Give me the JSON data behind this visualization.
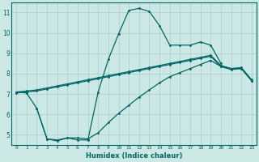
{
  "xlabel": "Humidex (Indice chaleur)",
  "bg_color": "#cce8e4",
  "grid_color": "#aacccc",
  "line_color": "#006666",
  "xlim": [
    -0.5,
    23.5
  ],
  "ylim": [
    4.5,
    11.5
  ],
  "xticks": [
    0,
    1,
    2,
    3,
    4,
    5,
    6,
    7,
    8,
    9,
    10,
    11,
    12,
    13,
    14,
    15,
    16,
    17,
    18,
    19,
    20,
    21,
    22,
    23
  ],
  "yticks": [
    5,
    6,
    7,
    8,
    9,
    10,
    11
  ],
  "curve1_x": [
    0,
    1,
    2,
    3,
    4,
    5,
    6,
    7,
    8,
    9,
    10,
    11,
    12,
    13,
    14,
    15,
    16,
    17,
    18,
    19,
    20
  ],
  "curve1_y": [
    7.1,
    7.05,
    6.3,
    4.8,
    4.75,
    4.85,
    4.75,
    4.75,
    7.1,
    8.7,
    9.95,
    11.1,
    11.2,
    11.05,
    10.35,
    9.4,
    9.4,
    9.4,
    9.55,
    9.4,
    8.5
  ],
  "curve2_x": [
    0,
    1,
    2,
    3,
    4,
    5,
    6,
    7,
    8,
    9,
    10,
    11,
    12,
    13,
    14,
    15,
    16,
    17,
    18,
    19,
    20,
    21,
    22,
    23
  ],
  "curve2_y": [
    7.1,
    7.15,
    7.2,
    7.3,
    7.4,
    7.5,
    7.6,
    7.7,
    7.8,
    7.9,
    8.0,
    8.1,
    8.2,
    8.3,
    8.4,
    8.5,
    8.6,
    8.7,
    8.8,
    8.9,
    8.4,
    8.25,
    8.3,
    7.7
  ],
  "curve3_x": [
    0,
    1,
    2,
    3,
    4,
    5,
    6,
    7,
    8,
    9,
    10,
    11,
    12,
    13,
    14,
    15,
    16,
    17,
    18,
    19,
    20,
    21,
    22,
    23
  ],
  "curve3_y": [
    7.05,
    7.1,
    7.15,
    7.25,
    7.35,
    7.45,
    7.55,
    7.65,
    7.75,
    7.85,
    7.95,
    8.05,
    8.15,
    8.25,
    8.35,
    8.45,
    8.55,
    8.65,
    8.75,
    8.85,
    8.35,
    8.2,
    8.25,
    7.65
  ],
  "curve4_x": [
    2,
    3,
    4,
    5,
    6,
    7,
    8,
    9,
    10,
    11,
    12,
    13,
    14,
    15,
    16,
    17,
    18,
    19,
    20,
    21,
    22,
    23
  ],
  "curve4_y": [
    6.3,
    4.8,
    4.7,
    4.85,
    4.85,
    4.8,
    5.1,
    5.6,
    6.05,
    6.45,
    6.85,
    7.2,
    7.55,
    7.85,
    8.05,
    8.25,
    8.45,
    8.65,
    8.35,
    8.25,
    8.25,
    7.65
  ]
}
